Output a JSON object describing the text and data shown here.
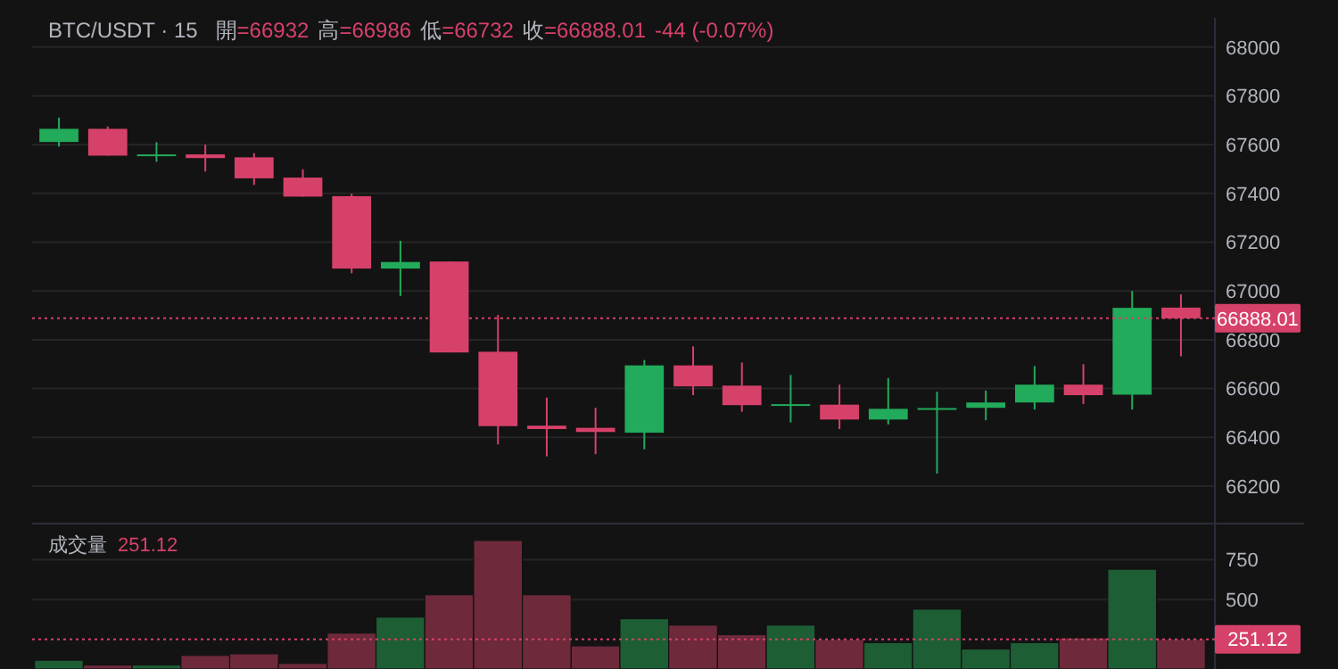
{
  "chart_data": [
    {
      "type": "candlestick",
      "title": "BTC/USDT · 15",
      "annotations": [
        "開=66932",
        "高=66986",
        "低=66732",
        "收=66888.01",
        "-44 (-0.07%)"
      ],
      "categories": [
        null,
        null,
        null,
        null,
        null,
        null,
        null,
        null,
        null,
        null,
        null,
        null,
        null,
        null,
        null,
        null,
        null,
        null,
        null,
        null,
        null,
        null,
        null,
        null
      ],
      "ohlc": [
        [
          67611,
          67711,
          67592,
          67665
        ],
        [
          67665,
          67675,
          67555,
          67555
        ],
        [
          67555,
          67610,
          67530,
          67560
        ],
        [
          67560,
          67600,
          67490,
          67545
        ],
        [
          67548,
          67565,
          67435,
          67462
        ],
        [
          67465,
          67499,
          67387,
          67387
        ],
        [
          67389,
          67399,
          67073,
          67092
        ],
        [
          67092,
          67206,
          66980,
          67119
        ],
        [
          67121,
          67121,
          66748,
          66748
        ],
        [
          66751,
          66902,
          66371,
          66446
        ],
        [
          66448,
          66563,
          66322,
          66434
        ],
        [
          66439,
          66521,
          66331,
          66422
        ],
        [
          66419,
          66717,
          66351,
          66695
        ],
        [
          66695,
          66773,
          66573,
          66609
        ],
        [
          66612,
          66707,
          66505,
          66532
        ],
        [
          66532,
          66656,
          66461,
          66536
        ],
        [
          66534,
          66616,
          66434,
          66473
        ],
        [
          66473,
          66643,
          66453,
          66517
        ],
        [
          66515,
          66587,
          66251,
          66520
        ],
        [
          66521,
          66592,
          66470,
          66543
        ],
        [
          66543,
          66692,
          66514,
          66616
        ],
        [
          66616,
          66700,
          66536,
          66573
        ],
        [
          66575,
          67000,
          66514,
          66931
        ],
        [
          66932,
          66986,
          66732,
          66888.01
        ]
      ],
      "colors": [
        "#22ab5a",
        "#d6416a",
        "#22ab5a",
        "#d6416a",
        "#d6416a",
        "#d6416a",
        "#d6416a",
        "#22ab5a",
        "#d6416a",
        "#d6416a",
        "#d6416a",
        "#d6416a",
        "#22ab5a",
        "#d6416a",
        "#d6416a",
        "#22ab5a",
        "#d6416a",
        "#22ab5a",
        "#22ab5a",
        "#22ab5a",
        "#22ab5a",
        "#d6416a",
        "#22ab5a",
        "#d6416a"
      ],
      "ylim": [
        66050,
        68120
      ],
      "yticks": [
        66200,
        66400,
        66600,
        66800,
        67000,
        67200,
        67400,
        67600,
        67800,
        68000
      ],
      "grid": "y",
      "tick_labels": "y",
      "ref_lines": [
        {
          "axis": "y",
          "value": 66888.01,
          "label": "66888.01",
          "color": "#d6416a",
          "line_style": "dotted"
        }
      ]
    },
    {
      "type": "bar",
      "title": "成交量",
      "subtitle": "251.12",
      "categories": [
        null,
        null,
        null,
        null,
        null,
        null,
        null,
        null,
        null,
        null,
        null,
        null,
        null,
        null,
        null,
        null,
        null,
        null,
        null,
        null,
        null,
        null,
        null,
        null
      ],
      "values": [
        120,
        90,
        90,
        150,
        160,
        100,
        290,
        390,
        530,
        870,
        530,
        210,
        380,
        340,
        280,
        340,
        250,
        230,
        440,
        190,
        230,
        260,
        690,
        251.12
      ],
      "colors": [
        "#1e5e35",
        "#6e2a3b",
        "#1e5e35",
        "#6e2a3b",
        "#6e2a3b",
        "#6e2a3b",
        "#6e2a3b",
        "#1e5e35",
        "#6e2a3b",
        "#6e2a3b",
        "#6e2a3b",
        "#6e2a3b",
        "#1e5e35",
        "#6e2a3b",
        "#6e2a3b",
        "#1e5e35",
        "#6e2a3b",
        "#1e5e35",
        "#1e5e35",
        "#1e5e35",
        "#1e5e35",
        "#6e2a3b",
        "#1e5e35",
        "#6e2a3b"
      ],
      "ylim": [
        65,
        970
      ],
      "yticks": [
        500,
        750
      ],
      "grid": "y",
      "tick_labels": "y",
      "ref_lines": [
        {
          "axis": "y",
          "value": 251.12,
          "label": "251.12",
          "color": "#d6416a",
          "line_style": "dotted"
        }
      ]
    }
  ]
}
